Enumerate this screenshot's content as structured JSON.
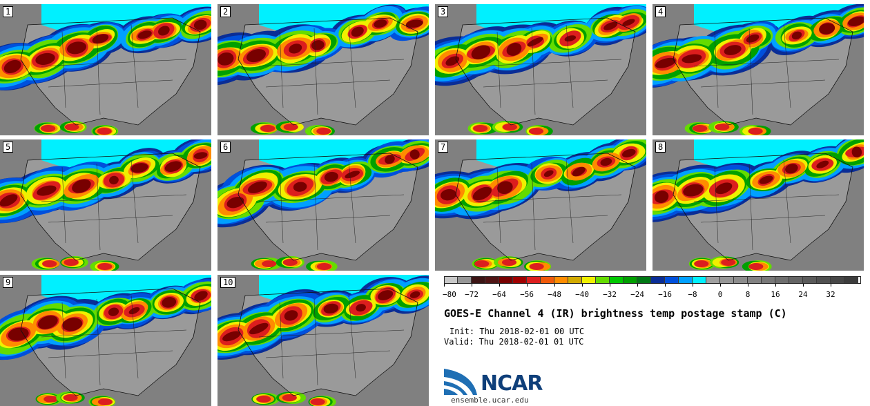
{
  "figure": {
    "title": "GOES-E Channel 4 (IR) brightness temp postage stamp (C)",
    "init": "Init: Thu 2018-02-01 00 UTC",
    "valid": "Valid: Thu 2018-02-01 01 UTC"
  },
  "members": [
    {
      "label": "1"
    },
    {
      "label": "2"
    },
    {
      "label": "3"
    },
    {
      "label": "4"
    },
    {
      "label": "5"
    },
    {
      "label": "6"
    },
    {
      "label": "7"
    },
    {
      "label": "8"
    },
    {
      "label": "9"
    },
    {
      "label": "10"
    }
  ],
  "colorbar": {
    "unit": "C",
    "tick_labels": [
      "−80",
      "−72",
      "−64",
      "−56",
      "−48",
      "−40",
      "−32",
      "−24",
      "−16",
      "−8",
      "0",
      "8",
      "16",
      "24",
      "32"
    ],
    "colors": [
      "#c8c8c8",
      "#969696",
      "#3c1414",
      "#501414",
      "#780000",
      "#a00000",
      "#dc1e1e",
      "#f05a0a",
      "#ff8c00",
      "#d2aa00",
      "#f0f000",
      "#64dc00",
      "#00c800",
      "#00a000",
      "#007814",
      "#0a2d96",
      "#0050dc",
      "#00a0ff",
      "#00f0ff",
      "#a0a0a0",
      "#969696",
      "#8c8c8c",
      "#828282",
      "#787878",
      "#6e6e6e",
      "#646464",
      "#5a5a5a",
      "#505050",
      "#464646",
      "#3c3c3c"
    ]
  },
  "logo": {
    "name": "NCAR",
    "url": "ensemble.ucar.edu"
  },
  "chart_data": {
    "type": "heatmap",
    "title": "GOES-E Channel 4 (IR) brightness temp postage stamp (C)",
    "panels": [
      "1",
      "2",
      "3",
      "4",
      "5",
      "6",
      "7",
      "8",
      "9",
      "10"
    ],
    "colorbar_range": [
      -80,
      40
    ],
    "colorbar_ticks": [
      -80,
      -72,
      -64,
      -56,
      -48,
      -40,
      -32,
      -24,
      -16,
      -8,
      0,
      8,
      16,
      24,
      32
    ]
  }
}
